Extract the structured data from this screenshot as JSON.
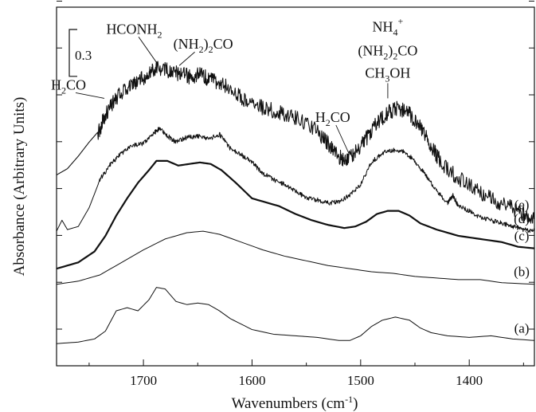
{
  "chart_data": {
    "type": "line",
    "xlabel_main": "Wavenumbers (cm",
    "xlabel_sup": "-1",
    "xlabel_close": ")",
    "ylabel": "Absorbance (Arbitrary Units)",
    "xlim": [
      1780,
      1340
    ],
    "x_ticks": [
      1700,
      1600,
      1500,
      1400
    ],
    "scale_bar_label": "0.3",
    "scale_bar_value": 0.3,
    "series": [
      {
        "name": "(a)",
        "stroke": 1.0,
        "noise": 0,
        "points": [
          [
            1780,
            0.05
          ],
          [
            1760,
            0.06
          ],
          [
            1745,
            0.08
          ],
          [
            1735,
            0.13
          ],
          [
            1725,
            0.26
          ],
          [
            1715,
            0.28
          ],
          [
            1705,
            0.26
          ],
          [
            1695,
            0.33
          ],
          [
            1688,
            0.41
          ],
          [
            1680,
            0.4
          ],
          [
            1670,
            0.32
          ],
          [
            1660,
            0.3
          ],
          [
            1650,
            0.31
          ],
          [
            1640,
            0.3
          ],
          [
            1630,
            0.26
          ],
          [
            1620,
            0.21
          ],
          [
            1600,
            0.14
          ],
          [
            1580,
            0.11
          ],
          [
            1560,
            0.1
          ],
          [
            1540,
            0.09
          ],
          [
            1520,
            0.07
          ],
          [
            1510,
            0.07
          ],
          [
            1500,
            0.1
          ],
          [
            1490,
            0.16
          ],
          [
            1480,
            0.2
          ],
          [
            1468,
            0.22
          ],
          [
            1455,
            0.2
          ],
          [
            1445,
            0.15
          ],
          [
            1435,
            0.12
          ],
          [
            1420,
            0.1
          ],
          [
            1400,
            0.09
          ],
          [
            1380,
            0.1
          ],
          [
            1360,
            0.08
          ],
          [
            1340,
            0.07
          ]
        ]
      },
      {
        "name": "(b)",
        "stroke": 1.0,
        "noise": 0,
        "points": [
          [
            1780,
            0.43
          ],
          [
            1760,
            0.45
          ],
          [
            1740,
            0.49
          ],
          [
            1720,
            0.57
          ],
          [
            1700,
            0.65
          ],
          [
            1680,
            0.72
          ],
          [
            1660,
            0.76
          ],
          [
            1645,
            0.77
          ],
          [
            1630,
            0.75
          ],
          [
            1610,
            0.7
          ],
          [
            1590,
            0.65
          ],
          [
            1570,
            0.61
          ],
          [
            1550,
            0.58
          ],
          [
            1530,
            0.55
          ],
          [
            1510,
            0.53
          ],
          [
            1490,
            0.51
          ],
          [
            1470,
            0.5
          ],
          [
            1450,
            0.48
          ],
          [
            1430,
            0.47
          ],
          [
            1410,
            0.46
          ],
          [
            1390,
            0.46
          ],
          [
            1370,
            0.44
          ],
          [
            1340,
            0.43
          ]
        ]
      },
      {
        "name": "(c)",
        "stroke": 2.2,
        "noise": 0,
        "points": [
          [
            1780,
            0.53
          ],
          [
            1760,
            0.57
          ],
          [
            1745,
            0.64
          ],
          [
            1735,
            0.74
          ],
          [
            1725,
            0.87
          ],
          [
            1715,
            0.98
          ],
          [
            1705,
            1.08
          ],
          [
            1695,
            1.16
          ],
          [
            1688,
            1.22
          ],
          [
            1678,
            1.22
          ],
          [
            1668,
            1.19
          ],
          [
            1658,
            1.2
          ],
          [
            1648,
            1.21
          ],
          [
            1638,
            1.2
          ],
          [
            1628,
            1.16
          ],
          [
            1615,
            1.08
          ],
          [
            1600,
            0.98
          ],
          [
            1590,
            0.96
          ],
          [
            1575,
            0.93
          ],
          [
            1560,
            0.88
          ],
          [
            1545,
            0.84
          ],
          [
            1530,
            0.81
          ],
          [
            1515,
            0.79
          ],
          [
            1505,
            0.8
          ],
          [
            1495,
            0.83
          ],
          [
            1485,
            0.88
          ],
          [
            1475,
            0.9
          ],
          [
            1465,
            0.9
          ],
          [
            1455,
            0.87
          ],
          [
            1445,
            0.82
          ],
          [
            1430,
            0.78
          ],
          [
            1410,
            0.74
          ],
          [
            1390,
            0.72
          ],
          [
            1370,
            0.7
          ],
          [
            1355,
            0.67
          ],
          [
            1340,
            0.66
          ]
        ]
      },
      {
        "name": "(d)",
        "stroke": 1.0,
        "noise": 0.015,
        "points": [
          [
            1780,
            0.77
          ],
          [
            1775,
            0.84
          ],
          [
            1770,
            0.78
          ],
          [
            1760,
            0.8
          ],
          [
            1750,
            0.92
          ],
          [
            1740,
            1.1
          ],
          [
            1730,
            1.2
          ],
          [
            1720,
            1.27
          ],
          [
            1710,
            1.32
          ],
          [
            1700,
            1.33
          ],
          [
            1690,
            1.4
          ],
          [
            1685,
            1.43
          ],
          [
            1678,
            1.38
          ],
          [
            1670,
            1.34
          ],
          [
            1660,
            1.37
          ],
          [
            1650,
            1.38
          ],
          [
            1640,
            1.36
          ],
          [
            1630,
            1.39
          ],
          [
            1620,
            1.3
          ],
          [
            1610,
            1.26
          ],
          [
            1600,
            1.21
          ],
          [
            1590,
            1.14
          ],
          [
            1580,
            1.1
          ],
          [
            1570,
            1.07
          ],
          [
            1560,
            1.03
          ],
          [
            1550,
            0.98
          ],
          [
            1540,
            0.97
          ],
          [
            1530,
            0.95
          ],
          [
            1520,
            0.96
          ],
          [
            1510,
            1.0
          ],
          [
            1500,
            1.07
          ],
          [
            1490,
            1.21
          ],
          [
            1480,
            1.27
          ],
          [
            1470,
            1.29
          ],
          [
            1460,
            1.28
          ],
          [
            1450,
            1.22
          ],
          [
            1440,
            1.13
          ],
          [
            1430,
            1.03
          ],
          [
            1420,
            0.95
          ],
          [
            1415,
            1.0
          ],
          [
            1410,
            0.93
          ],
          [
            1400,
            0.9
          ],
          [
            1390,
            0.86
          ],
          [
            1380,
            0.84
          ],
          [
            1370,
            0.82
          ],
          [
            1360,
            0.8
          ],
          [
            1350,
            0.78
          ],
          [
            1340,
            0.77
          ]
        ]
      },
      {
        "name": "(e)",
        "stroke": 1.1,
        "noise": 0.05,
        "points": [
          [
            1780,
            1.13
          ],
          [
            1770,
            1.17
          ],
          [
            1760,
            1.25
          ],
          [
            1750,
            1.34
          ],
          [
            1740,
            1.42
          ],
          [
            1735,
            1.52
          ],
          [
            1725,
            1.62
          ],
          [
            1715,
            1.69
          ],
          [
            1705,
            1.73
          ],
          [
            1695,
            1.78
          ],
          [
            1688,
            1.82
          ],
          [
            1678,
            1.8
          ],
          [
            1668,
            1.78
          ],
          [
            1658,
            1.76
          ],
          [
            1648,
            1.77
          ],
          [
            1638,
            1.74
          ],
          [
            1628,
            1.72
          ],
          [
            1615,
            1.65
          ],
          [
            1600,
            1.58
          ],
          [
            1585,
            1.55
          ],
          [
            1570,
            1.52
          ],
          [
            1555,
            1.48
          ],
          [
            1540,
            1.41
          ],
          [
            1530,
            1.33
          ],
          [
            1520,
            1.25
          ],
          [
            1515,
            1.22
          ],
          [
            1505,
            1.27
          ],
          [
            1495,
            1.36
          ],
          [
            1485,
            1.46
          ],
          [
            1475,
            1.53
          ],
          [
            1465,
            1.56
          ],
          [
            1455,
            1.52
          ],
          [
            1445,
            1.43
          ],
          [
            1435,
            1.31
          ],
          [
            1425,
            1.2
          ],
          [
            1410,
            1.11
          ],
          [
            1395,
            1.04
          ],
          [
            1380,
            0.98
          ],
          [
            1365,
            0.93
          ],
          [
            1350,
            0.88
          ],
          [
            1340,
            0.86
          ]
        ]
      }
    ],
    "annotations": [
      {
        "id": "h2co_left",
        "parts": [
          [
            "H",
            ""
          ],
          [
            "2",
            "sub"
          ],
          [
            "CO",
            ""
          ]
        ],
        "x": 1736,
        "y": 1.6,
        "dx": -45,
        "dy": -15
      },
      {
        "id": "hconh2",
        "parts": [
          [
            "HCONH",
            ""
          ],
          [
            "2",
            "sub"
          ]
        ],
        "x": 1688,
        "y": 1.83,
        "dx": -28,
        "dy": -40
      },
      {
        "id": "nh22co_top",
        "parts": [
          [
            "(NH",
            ""
          ],
          [
            "2",
            "sub"
          ],
          [
            ")",
            ""
          ],
          [
            "2",
            "sub"
          ],
          [
            "CO",
            ""
          ]
        ],
        "x": 1667,
        "y": 1.81,
        "dx": 30,
        "dy": -25
      },
      {
        "id": "h2co_right",
        "parts": [
          [
            "H",
            ""
          ],
          [
            "2",
            "sub"
          ],
          [
            "CO",
            ""
          ]
        ],
        "x": 1511,
        "y": 1.25,
        "dx": -20,
        "dy": -43
      },
      {
        "id": "nh4",
        "parts": [
          [
            "NH",
            ""
          ],
          [
            "4",
            "sub"
          ],
          [
            "+",
            "sup"
          ]
        ],
        "x": 1475,
        "y": 1.6,
        "dx": 0,
        "dy": -88
      },
      {
        "id": "nh22co_right",
        "parts": [
          [
            "(NH",
            ""
          ],
          [
            "2",
            "sub"
          ],
          [
            ")",
            ""
          ],
          [
            "2",
            "sub"
          ],
          [
            "CO",
            ""
          ]
        ],
        "x": 1475,
        "y": 1.6,
        "dx": 0,
        "dy": -58
      },
      {
        "id": "ch3oh",
        "parts": [
          [
            "CH",
            ""
          ],
          [
            "3",
            "sub"
          ],
          [
            "OH",
            ""
          ]
        ],
        "x": 1475,
        "y": 1.6,
        "dx": 0,
        "dy": -30
      }
    ]
  }
}
